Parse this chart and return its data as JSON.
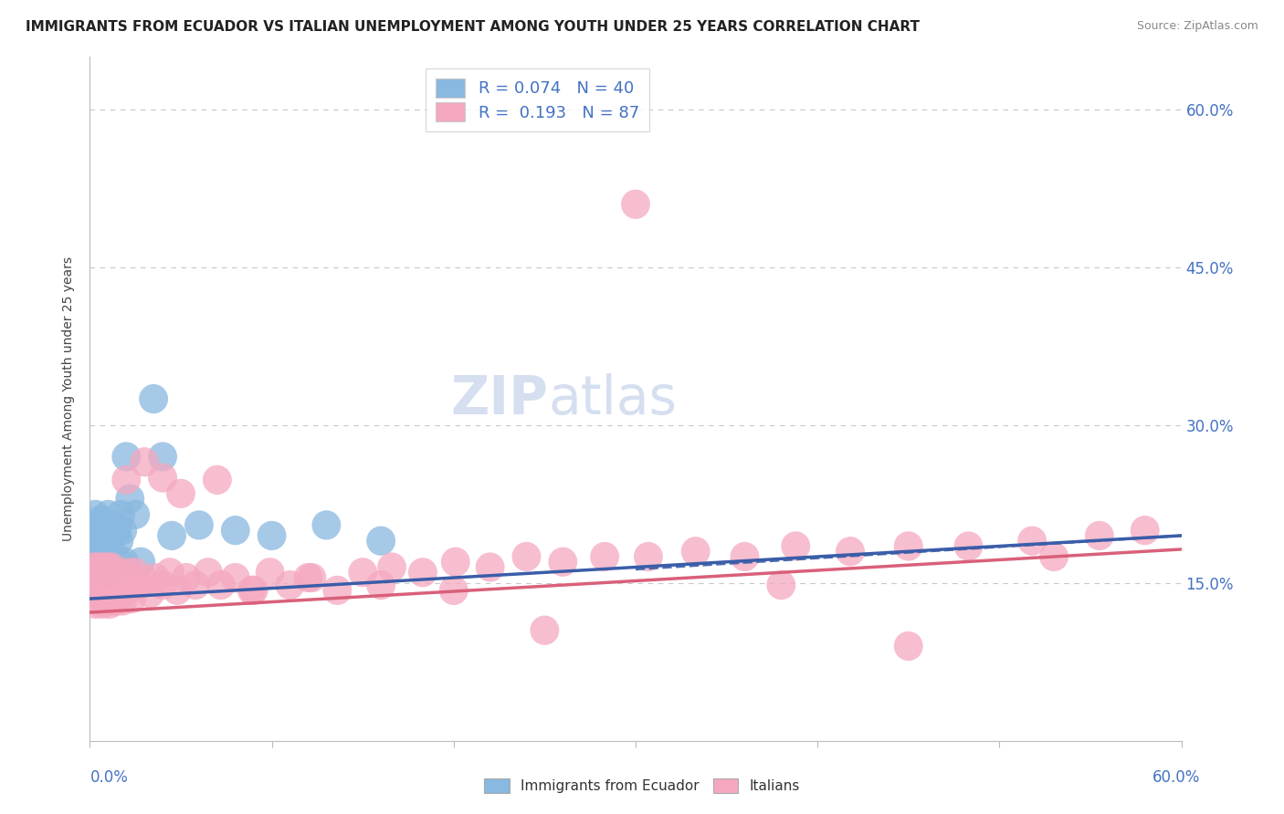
{
  "title": "IMMIGRANTS FROM ECUADOR VS ITALIAN UNEMPLOYMENT AMONG YOUTH UNDER 25 YEARS CORRELATION CHART",
  "source": "Source: ZipAtlas.com",
  "ylabel": "Unemployment Among Youth under 25 years",
  "watermark_zip": "ZIP",
  "watermark_atlas": "atlas",
  "legend_label_blue": "R = 0.074   N = 40",
  "legend_label_pink": "R =  0.193   N = 87",
  "ytick_vals": [
    0.0,
    0.15,
    0.3,
    0.45,
    0.6
  ],
  "ytick_labels": [
    "",
    "15.0%",
    "30.0%",
    "45.0%",
    "60.0%"
  ],
  "xlim": [
    0.0,
    0.6
  ],
  "ylim": [
    0.0,
    0.65
  ],
  "blue_color": "#89b8e0",
  "pink_color": "#f5a8bf",
  "blue_line_color": "#3a5da8",
  "pink_line_color": "#d9607a",
  "grid_color": "#c8c8c8",
  "watermark_color": "#d5dff0",
  "title_fontsize": 11,
  "source_fontsize": 9,
  "ylabel_fontsize": 10,
  "ytick_fontsize": 12,
  "legend_fontsize": 13,
  "background_color": "#ffffff",
  "blue_x": [
    0.001,
    0.002,
    0.002,
    0.003,
    0.003,
    0.004,
    0.004,
    0.005,
    0.005,
    0.006,
    0.006,
    0.007,
    0.007,
    0.008,
    0.008,
    0.009,
    0.009,
    0.01,
    0.01,
    0.011,
    0.012,
    0.013,
    0.014,
    0.015,
    0.016,
    0.017,
    0.018,
    0.019,
    0.02,
    0.022,
    0.025,
    0.028,
    0.035,
    0.04,
    0.045,
    0.06,
    0.08,
    0.1,
    0.13,
    0.16
  ],
  "blue_y": [
    0.165,
    0.17,
    0.2,
    0.175,
    0.215,
    0.16,
    0.19,
    0.175,
    0.205,
    0.185,
    0.21,
    0.165,
    0.195,
    0.18,
    0.2,
    0.165,
    0.19,
    0.175,
    0.215,
    0.16,
    0.195,
    0.205,
    0.175,
    0.2,
    0.19,
    0.215,
    0.2,
    0.17,
    0.27,
    0.23,
    0.215,
    0.17,
    0.325,
    0.27,
    0.195,
    0.205,
    0.2,
    0.195,
    0.205,
    0.19
  ],
  "pink_x": [
    0.001,
    0.001,
    0.002,
    0.002,
    0.003,
    0.003,
    0.004,
    0.004,
    0.005,
    0.005,
    0.006,
    0.006,
    0.007,
    0.007,
    0.008,
    0.008,
    0.009,
    0.009,
    0.01,
    0.01,
    0.011,
    0.011,
    0.012,
    0.012,
    0.013,
    0.013,
    0.014,
    0.015,
    0.015,
    0.016,
    0.017,
    0.018,
    0.019,
    0.02,
    0.021,
    0.022,
    0.023,
    0.025,
    0.027,
    0.03,
    0.033,
    0.036,
    0.04,
    0.044,
    0.048,
    0.053,
    0.058,
    0.065,
    0.072,
    0.08,
    0.089,
    0.099,
    0.11,
    0.122,
    0.136,
    0.15,
    0.166,
    0.183,
    0.201,
    0.22,
    0.24,
    0.26,
    0.283,
    0.307,
    0.333,
    0.36,
    0.388,
    0.418,
    0.45,
    0.483,
    0.518,
    0.555,
    0.02,
    0.03,
    0.04,
    0.05,
    0.07,
    0.09,
    0.12,
    0.16,
    0.2,
    0.25,
    0.3,
    0.38,
    0.45,
    0.53,
    0.58
  ],
  "pink_y": [
    0.135,
    0.155,
    0.145,
    0.165,
    0.13,
    0.16,
    0.14,
    0.165,
    0.135,
    0.155,
    0.14,
    0.165,
    0.13,
    0.155,
    0.14,
    0.165,
    0.135,
    0.155,
    0.14,
    0.165,
    0.13,
    0.158,
    0.14,
    0.165,
    0.133,
    0.155,
    0.14,
    0.133,
    0.16,
    0.148,
    0.14,
    0.133,
    0.155,
    0.143,
    0.16,
    0.148,
    0.135,
    0.16,
    0.148,
    0.153,
    0.14,
    0.155,
    0.148,
    0.16,
    0.143,
    0.155,
    0.148,
    0.16,
    0.148,
    0.155,
    0.143,
    0.16,
    0.148,
    0.155,
    0.143,
    0.16,
    0.165,
    0.16,
    0.17,
    0.165,
    0.175,
    0.17,
    0.175,
    0.175,
    0.18,
    0.175,
    0.185,
    0.18,
    0.185,
    0.185,
    0.19,
    0.195,
    0.248,
    0.265,
    0.25,
    0.235,
    0.248,
    0.143,
    0.155,
    0.148,
    0.143,
    0.105,
    0.51,
    0.148,
    0.09,
    0.175,
    0.2
  ],
  "blue_line_x": [
    0.0,
    0.6
  ],
  "blue_line_y": [
    0.135,
    0.195
  ],
  "pink_line_x": [
    0.0,
    0.6
  ],
  "pink_line_y": [
    0.122,
    0.182
  ]
}
